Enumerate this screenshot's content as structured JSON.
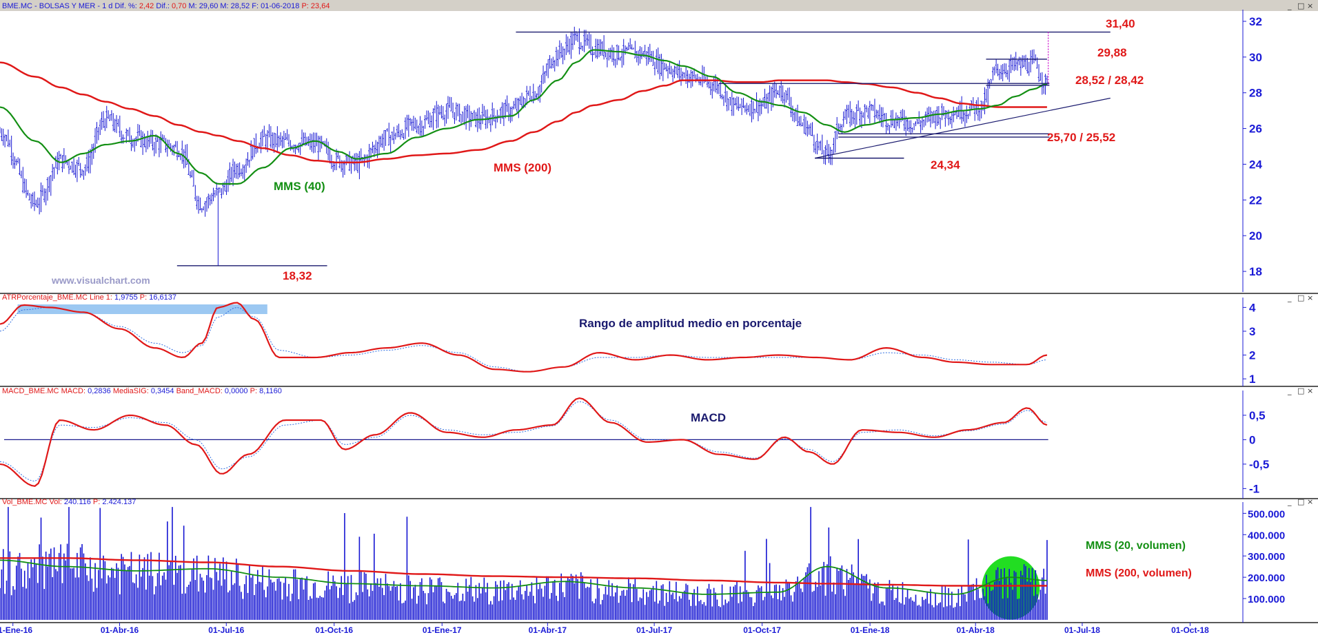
{
  "colors": {
    "price": "#1414d2",
    "mms40": "#138f13",
    "mms200": "#e01818",
    "axis_text": "#1a1ad6",
    "annotation_red": "#e01818",
    "annotation_navy": "#1a1a6e",
    "watermark": "#9a9ac8",
    "atr_highlight": "#9cc8f2",
    "vol_ellipse": "#22dd22"
  },
  "header": {
    "price": {
      "symbol": "BME.MC - BOLSAS Y MER -  1 d ",
      "dif_pct_label": "Dif. %:",
      "dif_pct": "2,42",
      "dif_label": "Dif.:",
      "dif": "0,70",
      "m_label": "M:",
      "m": "29,60",
      "m2_label": "M:",
      "m2": "28,52",
      "f_label": "F:",
      "f": "01-06-2018",
      "p_label": "P:",
      "p": "23,64"
    },
    "atr": {
      "name": "ATRPorcentaje_BME.MC",
      "line_label": "Line 1:",
      "line": "1,9755",
      "p_label": "P:",
      "p": "16,6137"
    },
    "macd": {
      "name": "MACD_BME.MC",
      "macd_label": "MACD:",
      "macd": "0,2836",
      "sig_label": "MediaSIG:",
      "sig": "0,3454",
      "band_label": "Band_MACD:",
      "band": "0,0000",
      "p_label": "P:",
      "p": "8,1160"
    },
    "vol": {
      "name": "Vol_BME.MC",
      "vol_label": "Vol:",
      "vol": "240.116",
      "p_label": "P:",
      "p": "2.424.137"
    }
  },
  "window_controls": [
    "_",
    "□",
    "×"
  ],
  "annotations": {
    "r3140": "31,40",
    "r2988": "29,88",
    "r2852": "28,52 / 28,42",
    "s2570": "25,70 / 25,52",
    "s2434": "24,34",
    "s1832": "18,32",
    "mms40": "MMS (40)",
    "mms200": "MMS (200)",
    "watermark": "www.visualchart.com",
    "atr_title": "Rango de amplitud medio en porcentaje",
    "macd_title": "MACD",
    "vol_mms20": "MMS (20, volumen)",
    "vol_mms200": "MMS (200, volumen)"
  },
  "chart_data": [
    {
      "type": "line",
      "panel": "price",
      "title": "",
      "xlabel": "",
      "ylabel": "",
      "ylim": [
        17,
        32.5
      ],
      "y_ticks": [
        "18",
        "20",
        "22",
        "24",
        "26",
        "28",
        "30",
        "32"
      ],
      "x_ticks": [
        "01-Ene-16",
        "01-Abr-16",
        "01-Jul-16",
        "01-Oct-16",
        "01-Ene-17",
        "01-Abr-17",
        "01-Jul-17",
        "01-Oct-17",
        "01-Ene-18",
        "01-Abr-18",
        "01-Jul-18",
        "01-Oct-18"
      ],
      "x": [
        "2015-12-21",
        "2016-01-20",
        "2016-02-11",
        "2016-03-01",
        "2016-03-20",
        "2016-04-10",
        "2016-05-01",
        "2016-05-21",
        "2016-06-10",
        "2016-06-24",
        "2016-07-11",
        "2016-08-01",
        "2016-08-25",
        "2016-09-15",
        "2016-10-05",
        "2016-10-20",
        "2016-11-15",
        "2016-12-10",
        "2017-01-05",
        "2017-02-01",
        "2017-03-01",
        "2017-03-20",
        "2017-04-10",
        "2017-04-25",
        "2017-05-10",
        "2017-06-01",
        "2017-06-21",
        "2017-07-10",
        "2017-07-25",
        "2017-08-20",
        "2017-09-10",
        "2017-10-01",
        "2017-10-16",
        "2017-11-05",
        "2017-11-25",
        "2017-12-10",
        "2017-12-28",
        "2018-01-20",
        "2018-02-10",
        "2018-03-01",
        "2018-03-20",
        "2018-04-05",
        "2018-04-20",
        "2018-05-05",
        "2018-05-20",
        "2018-06-01"
      ],
      "series": [
        {
          "name": "",
          "role": "price_close",
          "values": [
            25.8,
            21.8,
            24.2,
            23.8,
            26.5,
            25.5,
            25.2,
            24.9,
            21.8,
            22.4,
            23.8,
            25.4,
            25.2,
            25.1,
            24.2,
            24.0,
            25.5,
            26.2,
            27.0,
            26.5,
            27.0,
            28.0,
            30.2,
            31.0,
            30.5,
            30.2,
            30.2,
            29.5,
            29.0,
            28.5,
            27.2,
            27.3,
            28.2,
            26.2,
            24.5,
            26.6,
            27.0,
            26.5,
            26.3,
            26.8,
            27.0,
            27.2,
            29.3,
            29.5,
            29.6,
            28.5
          ]
        },
        {
          "name": "",
          "role": "mms40",
          "values": [
            27.2,
            25.3,
            24.1,
            24.6,
            25.1,
            25.3,
            25.6,
            24.6,
            23.5,
            22.9,
            22.9,
            23.8,
            24.9,
            25.3,
            24.7,
            24.3,
            24.6,
            25.5,
            26.0,
            26.5,
            26.7,
            27.6,
            28.7,
            29.7,
            30.4,
            30.3,
            30.1,
            29.8,
            29.5,
            28.9,
            28.0,
            27.5,
            27.3,
            26.9,
            26.2,
            25.8,
            26.2,
            26.5,
            26.6,
            26.8,
            27.0,
            27.1,
            27.3,
            27.8,
            28.2,
            28.5
          ]
        },
        {
          "name": "",
          "role": "mms200",
          "values": [
            29.7,
            28.9,
            28.3,
            27.9,
            27.5,
            27.1,
            26.7,
            26.2,
            25.8,
            25.6,
            25.3,
            24.9,
            24.5,
            24.2,
            24.1,
            24.1,
            24.3,
            24.5,
            24.6,
            24.8,
            25.3,
            25.8,
            26.4,
            26.9,
            27.3,
            27.6,
            28.1,
            28.4,
            28.7,
            28.7,
            28.6,
            28.6,
            28.7,
            28.7,
            28.7,
            28.6,
            28.5,
            28.3,
            28.0,
            27.7,
            27.4,
            27.3,
            27.2,
            27.2,
            27.2,
            27.2
          ]
        }
      ],
      "levels": [
        31.4,
        29.88,
        28.52,
        28.42,
        25.7,
        25.52,
        24.34,
        18.32
      ]
    },
    {
      "type": "line",
      "panel": "atr",
      "title": "",
      "ylim": [
        0.8,
        4.3
      ],
      "y_ticks": [
        "1",
        "2",
        "3",
        "4"
      ],
      "x": [
        "2015-12-21",
        "2016-01-10",
        "2016-02-01",
        "2016-03-01",
        "2016-04-01",
        "2016-05-01",
        "2016-05-25",
        "2016-06-10",
        "2016-06-24",
        "2016-07-10",
        "2016-07-25",
        "2016-08-15",
        "2016-09-15",
        "2016-10-15",
        "2016-11-15",
        "2016-12-15",
        "2017-01-15",
        "2017-02-15",
        "2017-03-15",
        "2017-04-15",
        "2017-05-15",
        "2017-06-15",
        "2017-07-15",
        "2017-08-15",
        "2017-09-15",
        "2017-10-15",
        "2017-11-15",
        "2017-12-15",
        "2018-01-15",
        "2018-02-15",
        "2018-03-15",
        "2018-04-15",
        "2018-05-15",
        "2018-06-01"
      ],
      "series": [
        {
          "name": "",
          "role": "atr",
          "values": [
            3.3,
            4.1,
            4.0,
            3.8,
            3.1,
            2.3,
            1.9,
            2.5,
            4.0,
            4.2,
            3.5,
            1.9,
            1.9,
            2.1,
            2.3,
            2.5,
            2.0,
            1.4,
            1.3,
            1.5,
            2.1,
            1.8,
            2.0,
            1.8,
            1.9,
            2.0,
            1.9,
            1.8,
            2.3,
            1.9,
            1.7,
            1.6,
            1.6,
            2.0
          ]
        },
        {
          "name": "",
          "role": "atr_avg",
          "values": [
            3.0,
            3.9,
            4.0,
            3.8,
            3.2,
            2.5,
            2.1,
            2.4,
            3.6,
            4.0,
            3.6,
            2.2,
            1.9,
            2.0,
            2.2,
            2.4,
            2.1,
            1.5,
            1.3,
            1.5,
            1.9,
            1.9,
            2.0,
            1.9,
            1.9,
            1.9,
            1.9,
            1.8,
            2.1,
            2.0,
            1.8,
            1.7,
            1.6,
            1.8
          ]
        }
      ]
    },
    {
      "type": "line",
      "panel": "macd",
      "title": "",
      "ylim": [
        -1.15,
        0.95
      ],
      "y_ticks": [
        "0,5",
        "0",
        "-0,5",
        "-1"
      ],
      "x": [
        "2015-12-21",
        "2016-01-20",
        "2016-02-10",
        "2016-03-10",
        "2016-04-10",
        "2016-05-10",
        "2016-06-05",
        "2016-06-27",
        "2016-07-20",
        "2016-08-20",
        "2016-09-20",
        "2016-10-10",
        "2016-11-05",
        "2016-12-05",
        "2017-01-05",
        "2017-02-05",
        "2017-03-05",
        "2017-04-05",
        "2017-04-28",
        "2017-05-25",
        "2017-06-25",
        "2017-07-25",
        "2017-08-25",
        "2017-09-25",
        "2017-10-20",
        "2017-11-10",
        "2017-11-30",
        "2017-12-25",
        "2018-01-25",
        "2018-02-25",
        "2018-03-25",
        "2018-04-25",
        "2018-05-15",
        "2018-06-01"
      ],
      "series": [
        {
          "name": "",
          "role": "macd",
          "values": [
            -0.5,
            -0.95,
            0.4,
            0.2,
            0.5,
            0.3,
            -0.1,
            -0.7,
            -0.3,
            0.4,
            0.4,
            -0.2,
            0.1,
            0.55,
            0.15,
            0.05,
            0.2,
            0.3,
            0.85,
            0.35,
            -0.05,
            0.0,
            -0.3,
            -0.4,
            0.05,
            -0.25,
            -0.5,
            0.2,
            0.15,
            0.05,
            0.2,
            0.35,
            0.65,
            0.3
          ]
        },
        {
          "name": "",
          "role": "signal",
          "values": [
            -0.45,
            -0.85,
            0.3,
            0.25,
            0.45,
            0.35,
            0.0,
            -0.6,
            -0.35,
            0.3,
            0.4,
            -0.1,
            0.05,
            0.5,
            0.2,
            0.1,
            0.15,
            0.28,
            0.78,
            0.4,
            0.0,
            0.0,
            -0.25,
            -0.38,
            0.02,
            -0.2,
            -0.45,
            0.15,
            0.2,
            0.08,
            0.18,
            0.32,
            0.6,
            0.35
          ]
        }
      ]
    },
    {
      "type": "bar",
      "panel": "volume",
      "title": "",
      "ylim": [
        0,
        540000
      ],
      "y_ticks": [
        "100.000",
        "200.000",
        "300.000",
        "400.000",
        "500.000"
      ],
      "x": [
        "2015-12-21",
        "2016-02-15",
        "2016-04-15",
        "2016-06-15",
        "2016-08-15",
        "2016-10-15",
        "2016-12-15",
        "2017-02-15",
        "2017-04-15",
        "2017-06-15",
        "2017-08-15",
        "2017-10-15",
        "2017-11-25",
        "2018-01-15",
        "2018-03-15",
        "2018-05-01",
        "2018-06-01"
      ],
      "series": [
        {
          "name": "",
          "role": "volume_avg_level",
          "values": [
            250000,
            270000,
            240000,
            230000,
            190000,
            170000,
            160000,
            150000,
            170000,
            150000,
            130000,
            140000,
            240000,
            140000,
            120000,
            200000,
            180000
          ]
        },
        {
          "name": "",
          "role": "mms20_volumen",
          "values": [
            280000,
            250000,
            230000,
            240000,
            200000,
            170000,
            160000,
            150000,
            180000,
            150000,
            120000,
            130000,
            250000,
            150000,
            120000,
            200000,
            185000
          ]
        },
        {
          "name": "",
          "role": "mms200_volumen",
          "values": [
            290000,
            290000,
            280000,
            270000,
            250000,
            230000,
            215000,
            205000,
            200000,
            195000,
            185000,
            175000,
            170000,
            165000,
            160000,
            160000,
            160000
          ]
        }
      ]
    }
  ]
}
